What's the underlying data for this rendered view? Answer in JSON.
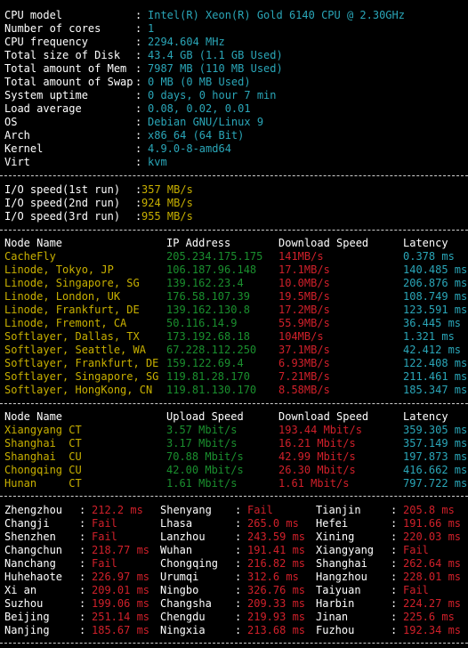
{
  "sysinfo": [
    {
      "label": "CPU model",
      "value": "Intel(R) Xeon(R) Gold 6140 CPU @ 2.30GHz"
    },
    {
      "label": "Number of cores",
      "value": "1"
    },
    {
      "label": "CPU frequency",
      "value": "2294.604 MHz"
    },
    {
      "label": "Total size of Disk",
      "value": "43.4 GB (1.1 GB Used)"
    },
    {
      "label": "Total amount of Mem",
      "value": "7987 MB (110 MB Used)"
    },
    {
      "label": "Total amount of Swap",
      "value": "0 MB (0 MB Used)"
    },
    {
      "label": "System uptime",
      "value": "0 days, 0 hour 7 min"
    },
    {
      "label": "Load average",
      "value": "0.08, 0.02, 0.01"
    },
    {
      "label": "OS",
      "value": "Debian GNU/Linux 9"
    },
    {
      "label": "Arch",
      "value": "x86_64 (64 Bit)"
    },
    {
      "label": "Kernel",
      "value": "4.9.0-8-amd64"
    },
    {
      "label": "Virt",
      "value": "kvm"
    }
  ],
  "io": [
    {
      "label": "I/O speed(1st run)",
      "value": "357 MB/s"
    },
    {
      "label": "I/O speed(2nd run)",
      "value": "924 MB/s"
    },
    {
      "label": "I/O speed(3rd run)",
      "value": "955 MB/s"
    }
  ],
  "download": {
    "headers": [
      "Node Name",
      "IP Address",
      "Download Speed",
      "Latency"
    ],
    "rows": [
      {
        "node": "CacheFly",
        "ip": "205.234.175.175",
        "speed": "141MB/s",
        "latency": "0.378 ms"
      },
      {
        "node": "Linode, Tokyo, JP",
        "ip": "106.187.96.148",
        "speed": "17.1MB/s",
        "latency": "140.485 ms"
      },
      {
        "node": "Linode, Singapore, SG",
        "ip": "139.162.23.4",
        "speed": "10.0MB/s",
        "latency": "206.876 ms"
      },
      {
        "node": "Linode, London, UK",
        "ip": "176.58.107.39",
        "speed": "19.5MB/s",
        "latency": "108.749 ms"
      },
      {
        "node": "Linode, Frankfurt, DE",
        "ip": "139.162.130.8",
        "speed": "17.2MB/s",
        "latency": "123.591 ms"
      },
      {
        "node": "Linode, Fremont, CA",
        "ip": "50.116.14.9",
        "speed": "55.9MB/s",
        "latency": "36.445 ms"
      },
      {
        "node": "Softlayer, Dallas, TX",
        "ip": "173.192.68.18",
        "speed": "104MB/s",
        "latency": "1.321 ms"
      },
      {
        "node": "Softlayer, Seattle, WA",
        "ip": "67.228.112.250",
        "speed": "37.1MB/s",
        "latency": "42.412 ms"
      },
      {
        "node": "Softlayer, Frankfurt, DE",
        "ip": "159.122.69.4",
        "speed": "6.93MB/s",
        "latency": "122.408 ms"
      },
      {
        "node": "Softlayer, Singapore, SG",
        "ip": "119.81.28.170",
        "speed": "7.21MB/s",
        "latency": "211.461 ms"
      },
      {
        "node": "Softlayer, HongKong, CN",
        "ip": "119.81.130.170",
        "speed": "8.58MB/s",
        "latency": "185.347 ms"
      }
    ]
  },
  "china": {
    "headers": [
      "Node Name",
      "Upload Speed",
      "Download Speed",
      "Latency"
    ],
    "rows": [
      {
        "node": "Xiangyang CT",
        "up": "3.57 Mbit/s",
        "down": "193.44 Mbit/s",
        "latency": "359.305 ms"
      },
      {
        "node": "Shanghai  CT",
        "up": "3.17 Mbit/s",
        "down": "16.21 Mbit/s",
        "latency": "357.149 ms"
      },
      {
        "node": "Shanghai  CU",
        "up": "70.88 Mbit/s",
        "down": "42.99 Mbit/s",
        "latency": "197.873 ms"
      },
      {
        "node": "Chongqing CU",
        "up": "42.00 Mbit/s",
        "down": "26.30 Mbit/s",
        "latency": "416.662 ms"
      },
      {
        "node": "Hunan     CT",
        "up": "1.61 Mbit/s",
        "down": "1.61 Mbit/s",
        "latency": "797.722 ms"
      }
    ]
  },
  "ping": [
    [
      {
        "city": "Zhengzhou",
        "val": "212.2 ms"
      },
      {
        "city": "Shenyang",
        "val": "Fail"
      },
      {
        "city": "Tianjin",
        "val": "205.8 ms"
      }
    ],
    [
      {
        "city": "Changji",
        "val": "Fail"
      },
      {
        "city": "Lhasa",
        "val": "265.0 ms"
      },
      {
        "city": "Hefei",
        "val": "191.66 ms"
      }
    ],
    [
      {
        "city": "Shenzhen",
        "val": "Fail"
      },
      {
        "city": "Lanzhou",
        "val": "243.59 ms"
      },
      {
        "city": "Xining",
        "val": "220.03 ms"
      }
    ],
    [
      {
        "city": "Changchun",
        "val": "218.77 ms"
      },
      {
        "city": "Wuhan",
        "val": "191.41 ms"
      },
      {
        "city": "Xiangyang",
        "val": "Fail"
      }
    ],
    [
      {
        "city": "Nanchang",
        "val": "Fail"
      },
      {
        "city": "Chongqing",
        "val": "216.82 ms"
      },
      {
        "city": "Shanghai",
        "val": "262.64 ms"
      }
    ],
    [
      {
        "city": "Huhehaote",
        "val": "226.97 ms"
      },
      {
        "city": "Urumqi",
        "val": "312.6 ms"
      },
      {
        "city": "Hangzhou",
        "val": "228.01 ms"
      }
    ],
    [
      {
        "city": "Xi an",
        "val": "209.01 ms"
      },
      {
        "city": "Ningbo",
        "val": "326.76 ms"
      },
      {
        "city": "Taiyuan",
        "val": "Fail"
      }
    ],
    [
      {
        "city": "Suzhou",
        "val": "199.06 ms"
      },
      {
        "city": "Changsha",
        "val": "209.33 ms"
      },
      {
        "city": "Harbin",
        "val": "224.27 ms"
      }
    ],
    [
      {
        "city": "Beijing",
        "val": "251.14 ms"
      },
      {
        "city": "Chengdu",
        "val": "219.93 ms"
      },
      {
        "city": "Jinan",
        "val": "225.6 ms"
      }
    ],
    [
      {
        "city": "Nanjing",
        "val": "185.67 ms"
      },
      {
        "city": "Ningxia",
        "val": "213.68 ms"
      },
      {
        "city": "Fuzhou",
        "val": "192.34 ms"
      }
    ]
  ],
  "ping_sep": ":",
  "colors": {
    "background": "#000000",
    "label": "#ffffff",
    "value_cyan": "#2aa6b8",
    "io_yellow": "#c8b000",
    "node_yellow": "#c8b000",
    "ip_green": "#1a8f2e",
    "speed_red": "#d0202a"
  }
}
